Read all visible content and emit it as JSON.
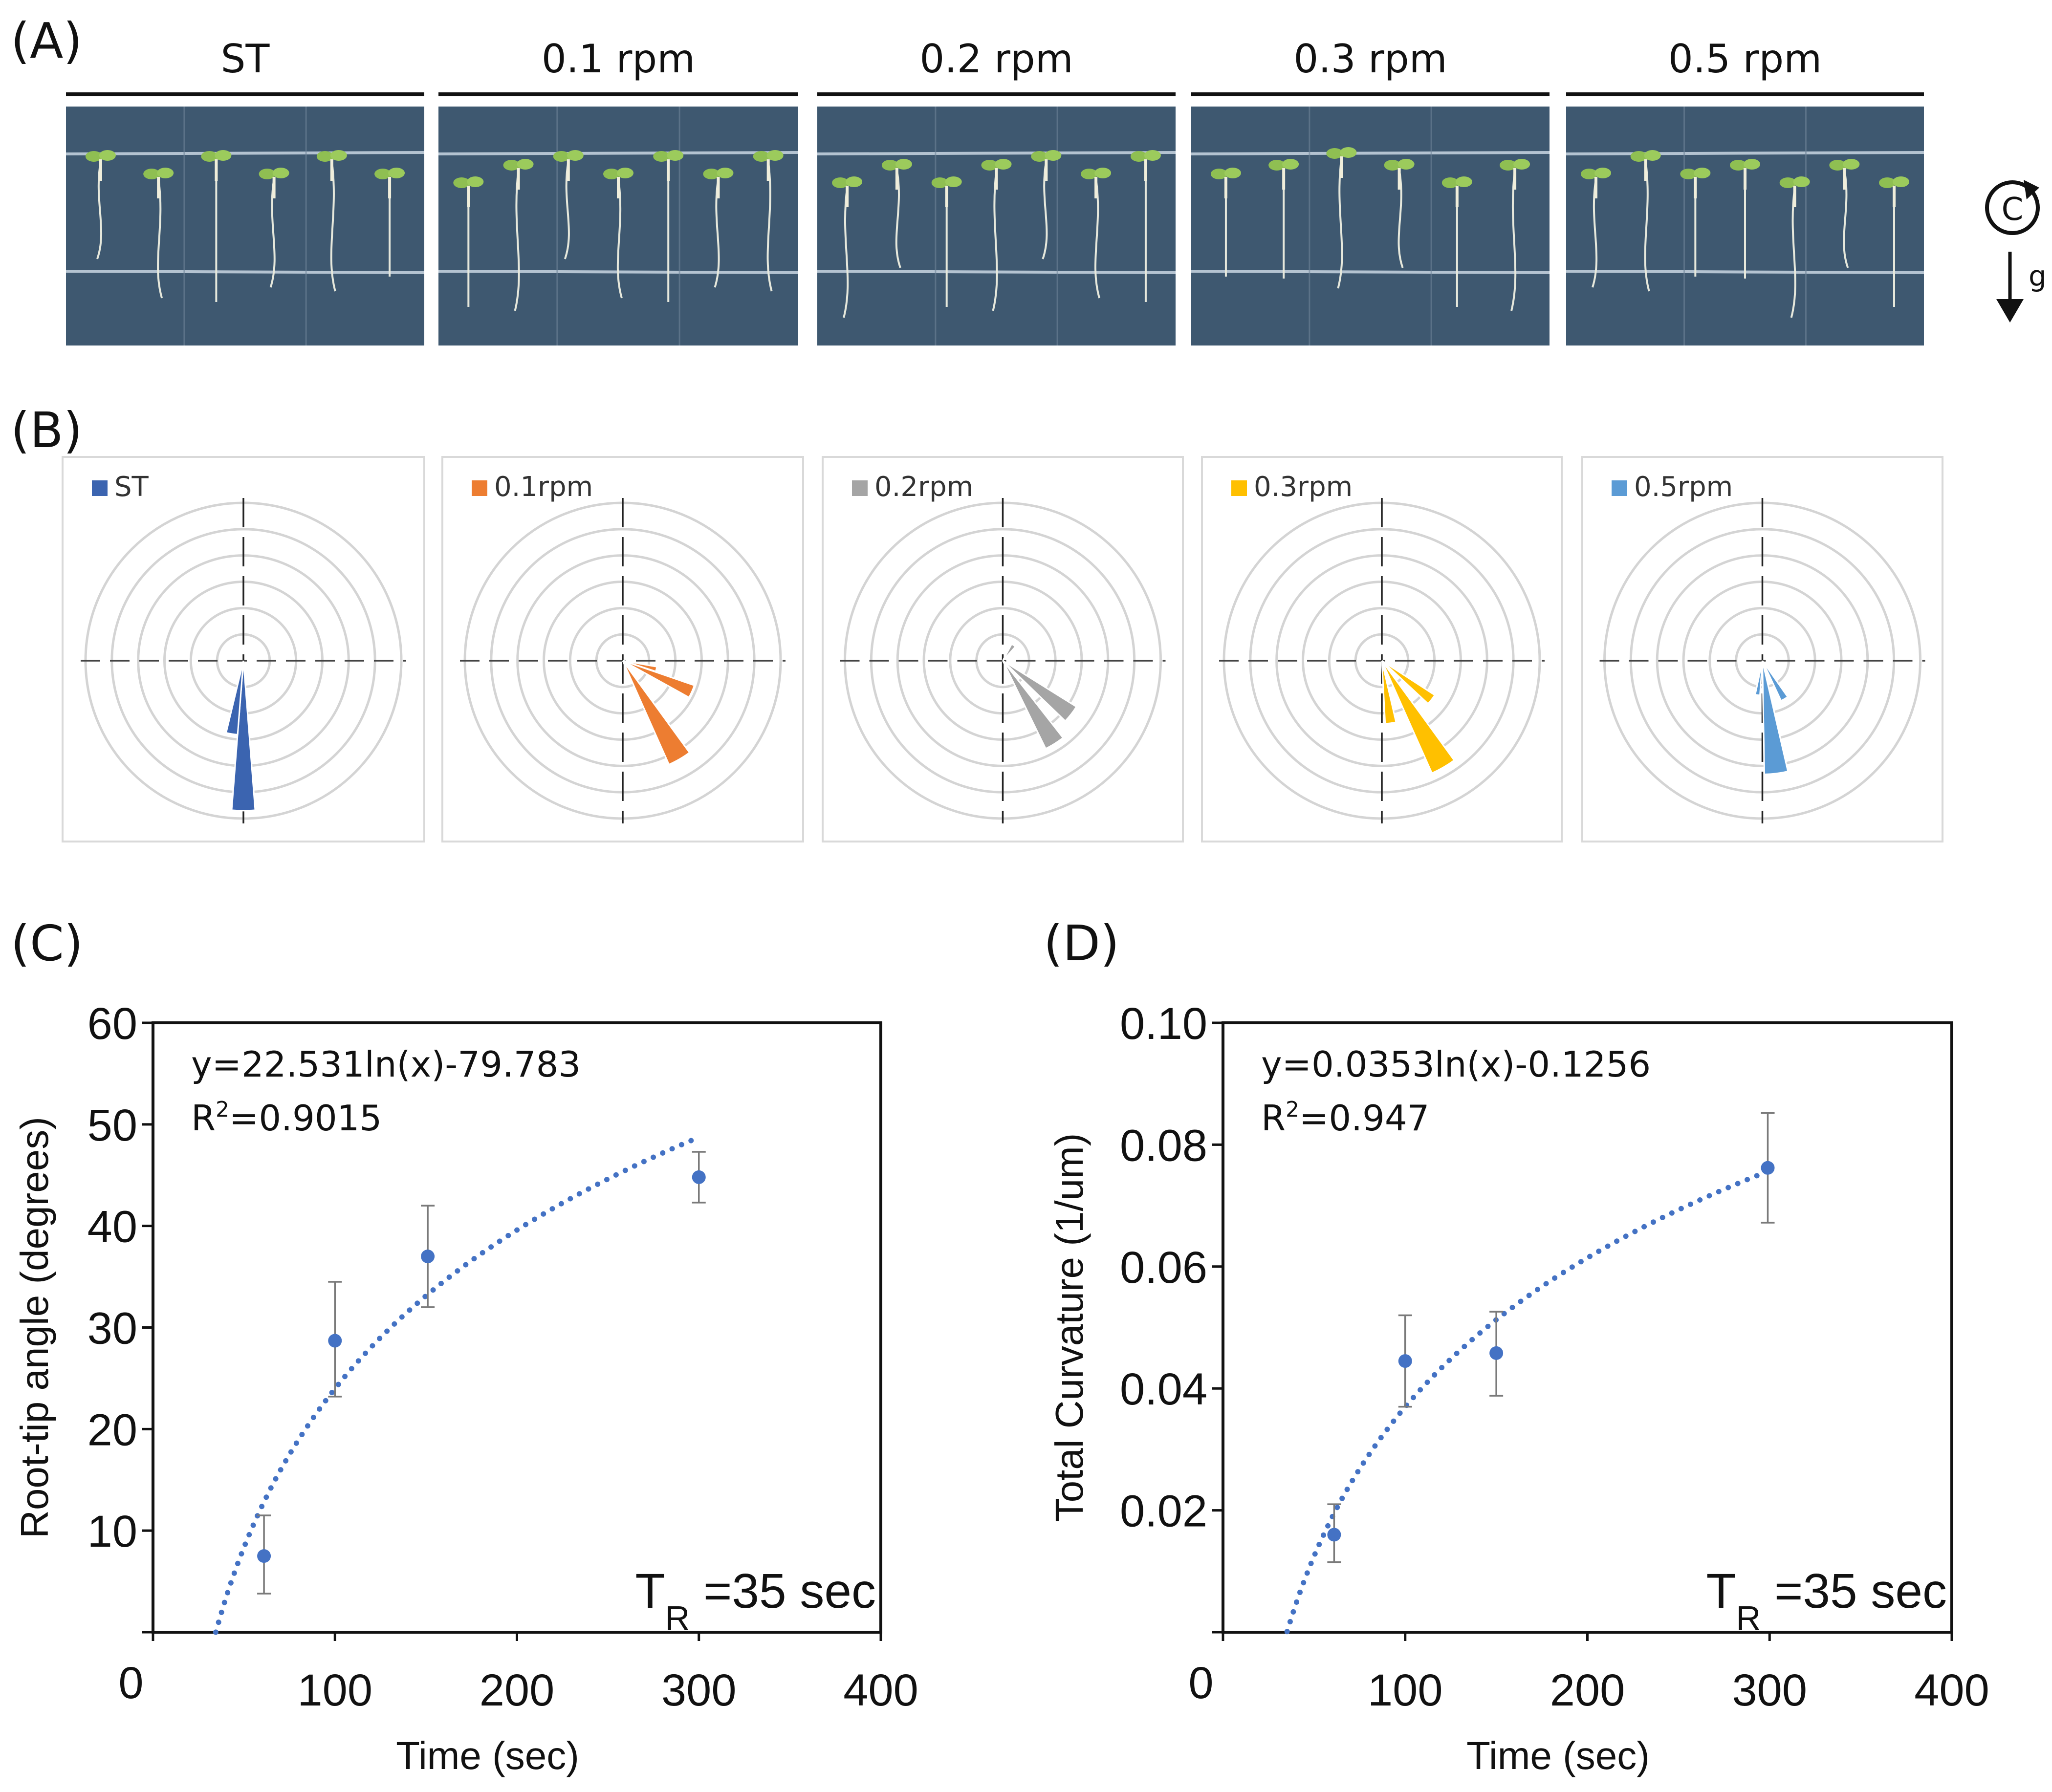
{
  "figure": {
    "panel_labels": [
      "(A)",
      "(B)",
      "(C)",
      "(D)"
    ],
    "rotation_icon_letter": "C",
    "gravity_label": "g"
  },
  "panel_a": {
    "conditions": [
      "ST",
      "0.1 rpm",
      "0.2 rpm",
      "0.3 rpm",
      "0.5 rpm"
    ],
    "photo_bg_color": "#3e5870",
    "seedling_counts": [
      6,
      7,
      7,
      6,
      7
    ]
  },
  "chart_data": [
    {
      "type": "polar",
      "panel": "B",
      "rings": 6,
      "petals_description": "rose diagrams of root-tip angle distribution, angle in degrees clockwise from downward (gravity) direction, length as fraction of outer ring",
      "series": [
        {
          "name": "ST",
          "color": "#3b64b0",
          "petals": [
            {
              "angle_center": 0,
              "width": 9,
              "length": 0.95
            },
            {
              "angle_center": -9,
              "width": 9,
              "length": 0.47
            }
          ]
        },
        {
          "name": "0.1rpm",
          "color": "#ed7d31",
          "petals": [
            {
              "angle_center": 30,
              "width": 12,
              "length": 0.72
            },
            {
              "angle_center": 66,
              "width": 10,
              "length": 0.48
            },
            {
              "angle_center": 76,
              "width": 8,
              "length": 0.22
            }
          ]
        },
        {
          "name": "0.2rpm",
          "color": "#a5a5a5",
          "petals": [
            {
              "angle_center": 32,
              "width": 12,
              "length": 0.62
            },
            {
              "angle_center": 52,
              "width": 12,
              "length": 0.55
            },
            {
              "angle_center": 145,
              "width": 14,
              "length": 0.12
            }
          ]
        },
        {
          "name": "0.3rpm",
          "color": "#ffc000",
          "petals": [
            {
              "angle_center": 30,
              "width": 12,
              "length": 0.78
            },
            {
              "angle_center": 52,
              "width": 10,
              "length": 0.4
            },
            {
              "angle_center": 8,
              "width": 10,
              "length": 0.4
            }
          ]
        },
        {
          "name": "0.5rpm",
          "color": "#5b9bd5",
          "petals": [
            {
              "angle_center": 7,
              "width": 12,
              "length": 0.72
            },
            {
              "angle_center": 30,
              "width": 10,
              "length": 0.28
            },
            {
              "angle_center": -8,
              "width": 8,
              "length": 0.22
            }
          ]
        }
      ]
    },
    {
      "type": "scatter",
      "panel": "C",
      "x": [
        61,
        100,
        151,
        300
      ],
      "y": [
        7.5,
        28.7,
        37.0,
        44.8
      ],
      "err_low": [
        3.7,
        5.5,
        5.0,
        2.5
      ],
      "err_high": [
        4.0,
        5.8,
        5.0,
        2.5
      ],
      "fit": {
        "type": "log",
        "a": 22.531,
        "b": -79.783,
        "x_start": 34.5,
        "x_end": 300
      },
      "equation_text": "y=22.531ln(x)-79.783",
      "r2_prefix": "R",
      "r2_exp": "2",
      "r2_value": "=0.9015",
      "tr_main": "T",
      "tr_sub": "R",
      "tr_rest": " =35 sec",
      "xlabel": "Time (sec)",
      "ylabel": "Root-tip angle (degrees)",
      "xlim": [
        0,
        400
      ],
      "ylim": [
        0,
        60
      ],
      "xticks": [
        "0",
        "100",
        "200",
        "300",
        "400"
      ],
      "yticks": [
        "10",
        "20",
        "30",
        "40",
        "50",
        "60"
      ],
      "point_color": "#4472c4"
    },
    {
      "type": "scatter",
      "panel": "D",
      "x": [
        61,
        100,
        150,
        299
      ],
      "y": [
        0.016,
        0.0445,
        0.0458,
        0.0762
      ],
      "err_low": [
        0.0045,
        0.0075,
        0.007,
        0.009
      ],
      "err_high": [
        0.005,
        0.0075,
        0.0068,
        0.009
      ],
      "fit": {
        "type": "log",
        "a": 0.0353,
        "b": -0.1256,
        "x_start": 35.2,
        "x_end": 299
      },
      "equation_text": "y=0.0353ln(x)-0.1256",
      "r2_prefix": "R",
      "r2_exp": "2",
      "r2_value": "=0.947",
      "tr_main": "T",
      "tr_sub": "R",
      "tr_rest": " =35 sec",
      "xlabel": "Time (sec)",
      "ylabel": "Total Curvature (1/um)",
      "xlim": [
        0,
        400
      ],
      "ylim": [
        0,
        0.1
      ],
      "xticks": [
        "0",
        "100",
        "200",
        "300",
        "400"
      ],
      "yticks": [
        "0.02",
        "0.04",
        "0.06",
        "0.08",
        "0.10"
      ],
      "point_color": "#4472c4"
    }
  ]
}
